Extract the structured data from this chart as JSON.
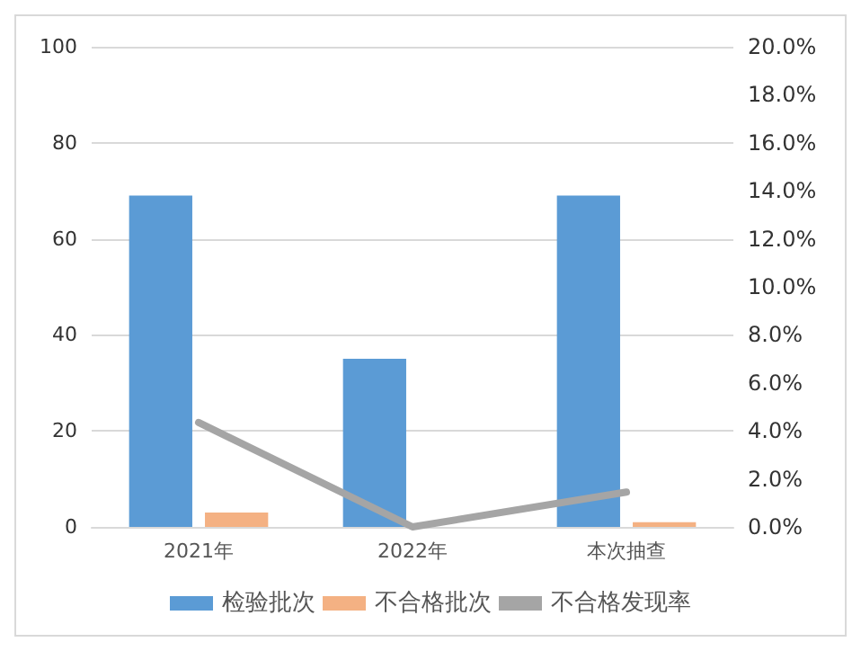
{
  "chart_data": {
    "type": "bar",
    "categories": [
      "2021年",
      "2022年",
      "本次抽查"
    ],
    "series": [
      {
        "name": "检验批次",
        "color": "#5b9bd5",
        "values": [
          69,
          35,
          69
        ]
      },
      {
        "name": "不合格批次",
        "color": "#f4b183",
        "values": [
          3,
          0,
          1
        ]
      },
      {
        "name": "不合格发现率",
        "type": "line",
        "axis": "y2",
        "color": "#a5a5a5",
        "values": [
          4.35,
          0,
          1.45
        ]
      }
    ],
    "ylim": [
      0,
      100
    ],
    "yticks": [
      0,
      20,
      40,
      60,
      80,
      100
    ],
    "y2lim": [
      0,
      20
    ],
    "y2ticks": [
      {
        "value": 0,
        "label": "0.0%"
      },
      {
        "value": 2,
        "label": "2.0%"
      },
      {
        "value": 4,
        "label": "4.0%"
      },
      {
        "value": 6,
        "label": "6.0%"
      },
      {
        "value": 8,
        "label": "8.0%"
      },
      {
        "value": 10,
        "label": "10.0%"
      },
      {
        "value": 12,
        "label": "12.0%"
      },
      {
        "value": 14,
        "label": "14.0%"
      },
      {
        "value": 16,
        "label": "16.0%"
      },
      {
        "value": 18,
        "label": "18.0%"
      },
      {
        "value": 20,
        "label": "20.0%"
      }
    ],
    "grid": "y",
    "legend": "bottom",
    "marker": "none"
  }
}
